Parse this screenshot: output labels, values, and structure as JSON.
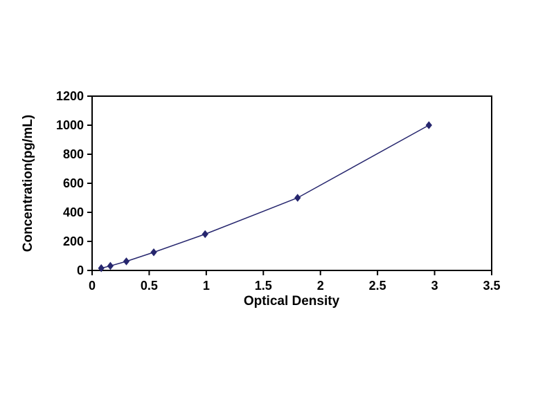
{
  "chart_data": {
    "type": "line",
    "title": "",
    "xlabel": "Optical Density",
    "ylabel": "Concentration(pg/mL)",
    "x": [
      0.08,
      0.16,
      0.3,
      0.54,
      0.99,
      1.8,
      2.95
    ],
    "y": [
      15.6,
      31.2,
      62.5,
      125,
      250,
      500,
      1000
    ],
    "xlim": [
      0,
      3.5
    ],
    "ylim": [
      0,
      1200
    ],
    "xticks": [
      "0",
      "0.5",
      "1",
      "1.5",
      "2",
      "2.5",
      "3",
      "3.5"
    ],
    "yticks": [
      "0",
      "200",
      "400",
      "600",
      "800",
      "1000",
      "1200"
    ],
    "grid": false,
    "legend": false,
    "marker": "diamond",
    "line_color": "#26266e",
    "marker_color": "#26266e",
    "axis_color": "#000000",
    "background": "#ffffff"
  }
}
